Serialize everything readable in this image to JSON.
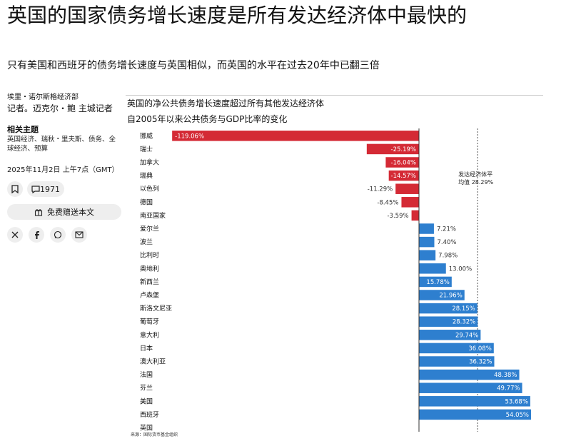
{
  "headline": "英国的国家债务增长速度是所有发达经济体中最快的",
  "subtitle": "只有美国和西班牙的债务增长速度与英国相似，而英国的水平在过去20年中已翻三倍",
  "byline": {
    "org": "埃里・诺尔斯格经济部",
    "author": "记者。迈克尔・鲍 主城记者"
  },
  "topics": {
    "title": "相关主题",
    "list": "英国经济、瑞秋・里夫斯、债务、全球经济、预算"
  },
  "pubdate": "2025年11月2日 上午7点（GMT）",
  "comments_count": "1971",
  "gift_label": "免费赠送本文",
  "icons": {
    "bookmark": "bookmark-icon",
    "comment": "comment-icon",
    "gift": "gift-icon",
    "x": "x-icon",
    "facebook": "facebook-icon",
    "whatsapp": "whatsapp-icon",
    "email": "email-icon"
  },
  "colors": {
    "negative": "#d42a35",
    "positive": "#2e7fcf"
  },
  "chart_data": {
    "type": "bar",
    "orientation": "horizontal",
    "title": "英国的净公共债务增长速度超过所有其他发达经济体",
    "subtitle": "自2005年以来公共债务与GDP比率的变化",
    "categories": [
      "挪威",
      "瑞士",
      "加拿大",
      "瑞典",
      "以色列",
      "德国",
      "南亚国家",
      "爱尔兰",
      "波兰",
      "比利时",
      "奥地利",
      "新西兰",
      "卢森堡",
      "斯洛文尼亚",
      "葡萄牙",
      "意大利",
      "日本",
      "澳大利亚",
      "法国",
      "芬兰",
      "美国",
      "西班牙",
      "英国"
    ],
    "values": [
      -119.06,
      -25.19,
      -16.04,
      -14.57,
      -11.29,
      -8.45,
      -3.59,
      7.21,
      7.4,
      7.98,
      13.0,
      15.78,
      21.96,
      28.15,
      28.32,
      29.74,
      36.08,
      36.32,
      48.38,
      49.77,
      53.68,
      54.05,
      null
    ],
    "labels": [
      "-119.06%",
      "-25.19%",
      "-16.04%",
      "-14.57%",
      "-11.29%",
      "-8.45%",
      "-3.59%",
      "7.21%",
      "7.40%",
      "7.98%",
      "13.00%",
      "15.78%",
      "21.96%",
      "28.15%",
      "28.32%",
      "29.74%",
      "36.08%",
      "36.32%",
      "48.38%",
      "49.77%",
      "53.68%",
      "54.05%",
      ""
    ],
    "reference_line": {
      "value": 28.29,
      "label_line1": "发达经济体平",
      "label_line2": "均值 28.29%"
    },
    "source": "来源：国际货币基金组织"
  }
}
